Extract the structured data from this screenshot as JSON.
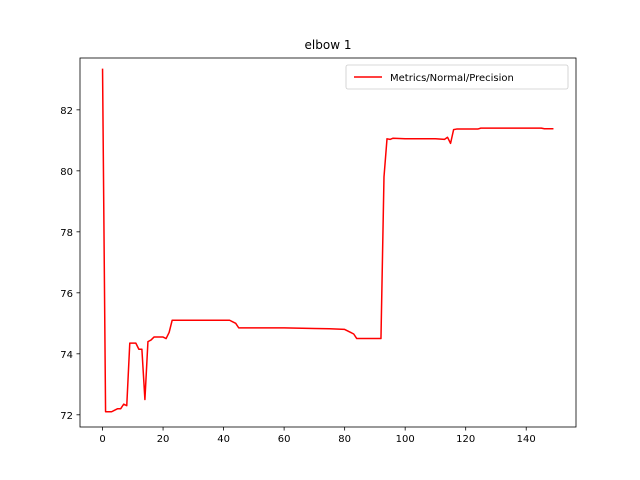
{
  "chart_data": {
    "type": "line",
    "title": "elbow 1",
    "xlabel": "",
    "ylabel": "",
    "xlim": [
      -7.45,
      156.45
    ],
    "ylim": [
      71.6,
      83.7
    ],
    "xticks": [
      0,
      20,
      40,
      60,
      80,
      100,
      120,
      140
    ],
    "yticks": [
      72,
      74,
      76,
      78,
      80,
      82
    ],
    "grid": false,
    "legend_position": "top-right",
    "series": [
      {
        "name": "Metrics/Normal/Precision",
        "color": "#ff0000",
        "x": [
          0,
          1,
          2,
          3,
          4,
          5,
          6,
          7,
          8,
          9,
          10,
          11,
          12,
          13,
          14,
          15,
          16,
          17,
          18,
          20,
          21,
          22,
          23,
          24,
          25,
          30,
          35,
          40,
          42,
          43,
          44,
          45,
          50,
          60,
          70,
          75,
          80,
          82,
          83,
          84,
          85,
          88,
          90,
          92,
          93,
          94,
          95,
          96,
          100,
          105,
          110,
          113,
          114,
          115,
          116,
          117,
          118,
          120,
          124,
          125,
          126,
          130,
          140,
          145,
          146,
          149
        ],
        "y": [
          83.35,
          72.1,
          72.1,
          72.1,
          72.15,
          72.2,
          72.2,
          72.35,
          72.3,
          74.35,
          74.35,
          74.35,
          74.15,
          74.15,
          72.5,
          74.4,
          74.45,
          74.55,
          74.55,
          74.55,
          74.5,
          74.7,
          75.1,
          75.1,
          75.1,
          75.1,
          75.1,
          75.1,
          75.1,
          75.05,
          75.0,
          74.85,
          74.85,
          74.85,
          74.83,
          74.82,
          74.8,
          74.7,
          74.65,
          74.5,
          74.5,
          74.5,
          74.5,
          74.5,
          79.8,
          81.05,
          81.03,
          81.07,
          81.05,
          81.05,
          81.05,
          81.03,
          81.1,
          80.9,
          81.35,
          81.37,
          81.37,
          81.37,
          81.37,
          81.4,
          81.4,
          81.4,
          81.4,
          81.4,
          81.38,
          81.38
        ]
      }
    ]
  }
}
